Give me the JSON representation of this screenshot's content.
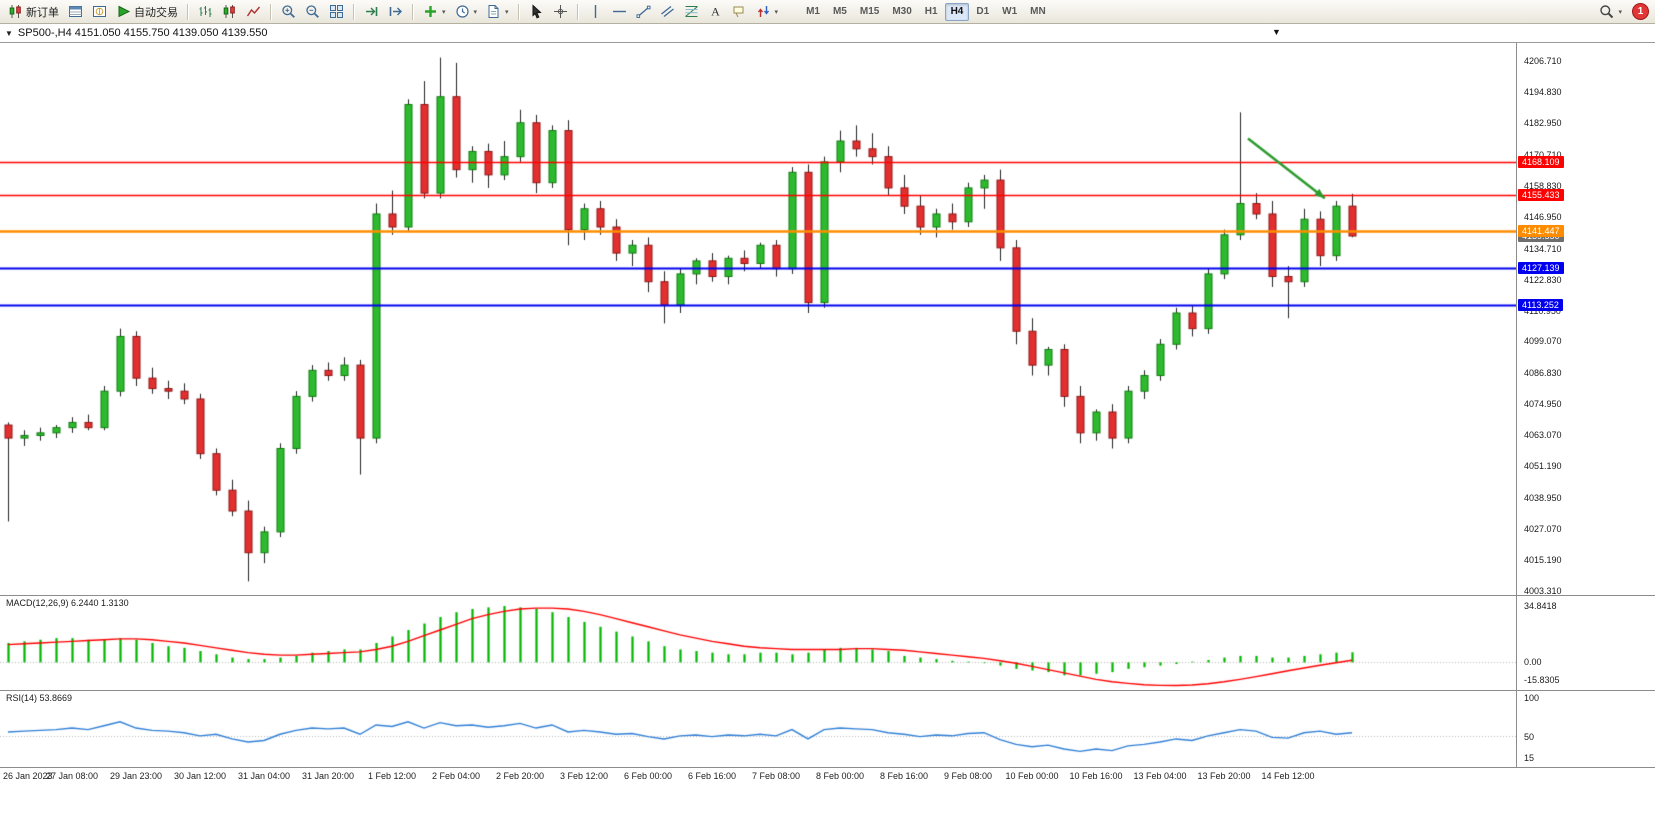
{
  "toolbar": {
    "items": [
      {
        "name": "new-order-button",
        "icon": "candles",
        "label": "新订单"
      },
      {
        "name": "market-watch-button",
        "icon": "watch"
      },
      {
        "name": "navigator-button",
        "icon": "navigator"
      },
      {
        "name": "auto-trading-button",
        "icon": "play",
        "label": "自动交易"
      },
      {
        "sep": true
      },
      {
        "name": "chart-bars-button",
        "icon": "bars"
      },
      {
        "name": "chart-candles-button",
        "icon": "candles"
      },
      {
        "name": "chart-line-button",
        "icon": "linechart"
      },
      {
        "sep": true
      },
      {
        "name": "zoom-in-button",
        "icon": "zoomin"
      },
      {
        "name": "zoom-out-button",
        "icon": "zoomout"
      },
      {
        "name": "tile-windows-button",
        "icon": "tile"
      },
      {
        "sep": true
      },
      {
        "name": "auto-scroll-button",
        "icon": "autoscroll"
      },
      {
        "name": "chart-shift-button",
        "icon": "shift"
      },
      {
        "sep": true
      },
      {
        "name": "indicators-button",
        "icon": "plus",
        "dropdown": true
      },
      {
        "name": "periods-button",
        "icon": "clock",
        "dropdown": true
      },
      {
        "name": "templates-button",
        "icon": "template",
        "dropdown": true
      },
      {
        "sep": true
      },
      {
        "name": "cursor-button",
        "icon": "cursor"
      },
      {
        "name": "crosshair-button",
        "icon": "crosshair"
      },
      {
        "sep": true
      },
      {
        "name": "vertical-line-button",
        "icon": "vline"
      },
      {
        "name": "horizontal-line-button",
        "icon": "hline"
      },
      {
        "name": "trendline-button",
        "icon": "trendline"
      },
      {
        "name": "channel-button",
        "icon": "channel"
      },
      {
        "name": "fibonacci-button",
        "icon": "fibo"
      },
      {
        "name": "text-button",
        "icon": "textA"
      },
      {
        "name": "label-button",
        "icon": "label"
      },
      {
        "name": "arrows-button",
        "icon": "arrows",
        "dropdown": true
      }
    ],
    "timeframes": [
      "M1",
      "M5",
      "M15",
      "M30",
      "H1",
      "H4",
      "D1",
      "W1",
      "MN"
    ],
    "active_timeframe": "H4",
    "notification_count": "1"
  },
  "chart": {
    "title": "SP500-,H4 4151.050 4155.750 4139.050 4139.550",
    "symbol": "SP500-",
    "timeframe": "H4",
    "open": "4151.050",
    "high": "4155.750",
    "low": "4139.050",
    "close": "4139.550"
  },
  "chart_data": {
    "type": "candlestick",
    "symbol": "SP500-",
    "period": "H4",
    "price_ticks": [
      "4206.710",
      "4194.830",
      "4182.950",
      "4170.710",
      "4158.830",
      "4146.950",
      "4134.710",
      "4122.830",
      "4110.950",
      "4099.070",
      "4086.830",
      "4074.950",
      "4063.070",
      "4051.190",
      "4038.950",
      "4027.070",
      "4015.190",
      "4003.310"
    ],
    "time_labels": [
      "26 Jan 2023",
      "27 Jan 08:00",
      "29 Jan 23:00",
      "30 Jan 12:00",
      "31 Jan 04:00",
      "31 Jan 20:00",
      "1 Feb 12:00",
      "2 Feb 04:00",
      "2 Feb 20:00",
      "3 Feb 12:00",
      "6 Feb 00:00",
      "6 Feb 16:00",
      "7 Feb 08:00",
      "8 Feb 00:00",
      "8 Feb 16:00",
      "9 Feb 08:00",
      "10 Feb 00:00",
      "10 Feb 16:00",
      "13 Feb 04:00",
      "13 Feb 20:00",
      "14 Feb 12:00"
    ],
    "candles": [
      [
        4067,
        4068,
        4030,
        4062
      ],
      [
        4062,
        4065,
        4059,
        4063
      ],
      [
        4063,
        4066,
        4061,
        4064
      ],
      [
        4064,
        4067,
        4062,
        4066
      ],
      [
        4066,
        4070,
        4064,
        4068
      ],
      [
        4068,
        4071,
        4065,
        4066
      ],
      [
        4066,
        4082,
        4065,
        4080
      ],
      [
        4080,
        4104,
        4078,
        4101
      ],
      [
        4101,
        4103,
        4082,
        4085
      ],
      [
        4085,
        4089,
        4079,
        4081
      ],
      [
        4081,
        4084,
        4077,
        4080
      ],
      [
        4080,
        4083,
        4075,
        4077
      ],
      [
        4077,
        4079,
        4054,
        4056
      ],
      [
        4056,
        4058,
        4040,
        4042
      ],
      [
        4042,
        4046,
        4032,
        4034
      ],
      [
        4034,
        4038,
        4007,
        4018
      ],
      [
        4018,
        4028,
        4014,
        4026
      ],
      [
        4026,
        4060,
        4024,
        4058
      ],
      [
        4058,
        4080,
        4056,
        4078
      ],
      [
        4078,
        4090,
        4076,
        4088
      ],
      [
        4088,
        4091,
        4084,
        4086
      ],
      [
        4086,
        4093,
        4084,
        4090
      ],
      [
        4090,
        4092,
        4048,
        4062
      ],
      [
        4062,
        4152,
        4060,
        4148
      ],
      [
        4148,
        4157,
        4140,
        4143
      ],
      [
        4143,
        4192,
        4141,
        4190
      ],
      [
        4190,
        4199,
        4154,
        4156
      ],
      [
        4156,
        4208,
        4154,
        4193
      ],
      [
        4193,
        4206,
        4162,
        4165
      ],
      [
        4165,
        4174,
        4160,
        4172
      ],
      [
        4172,
        4175,
        4158,
        4163
      ],
      [
        4163,
        4176,
        4161,
        4170
      ],
      [
        4170,
        4188,
        4168,
        4183
      ],
      [
        4183,
        4186,
        4156,
        4160
      ],
      [
        4160,
        4182,
        4158,
        4180
      ],
      [
        4180,
        4184,
        4136,
        4142
      ],
      [
        4142,
        4152,
        4138,
        4150
      ],
      [
        4150,
        4153,
        4140,
        4143
      ],
      [
        4143,
        4146,
        4130,
        4133
      ],
      [
        4133,
        4138,
        4128,
        4136
      ],
      [
        4136,
        4139,
        4118,
        4122
      ],
      [
        4122,
        4126,
        4106,
        4113
      ],
      [
        4113,
        4127,
        4110,
        4125
      ],
      [
        4125,
        4131,
        4121,
        4130
      ],
      [
        4130,
        4133,
        4122,
        4124
      ],
      [
        4124,
        4132,
        4121,
        4131
      ],
      [
        4131,
        4134,
        4126,
        4129
      ],
      [
        4129,
        4137,
        4127,
        4136
      ],
      [
        4136,
        4138,
        4124,
        4127
      ],
      [
        4127,
        4166,
        4125,
        4164
      ],
      [
        4164,
        4167,
        4110,
        4114
      ],
      [
        4114,
        4170,
        4112,
        4168
      ],
      [
        4168,
        4180,
        4164,
        4176
      ],
      [
        4176,
        4182,
        4170,
        4173
      ],
      [
        4173,
        4179,
        4167,
        4170
      ],
      [
        4170,
        4174,
        4155,
        4158
      ],
      [
        4158,
        4163,
        4148,
        4151
      ],
      [
        4151,
        4155,
        4140,
        4143
      ],
      [
        4143,
        4150,
        4139,
        4148
      ],
      [
        4148,
        4152,
        4142,
        4145
      ],
      [
        4145,
        4160,
        4143,
        4158
      ],
      [
        4158,
        4163,
        4150,
        4161
      ],
      [
        4161,
        4165,
        4130,
        4135
      ],
      [
        4135,
        4138,
        4098,
        4103
      ],
      [
        4103,
        4108,
        4086,
        4090
      ],
      [
        4090,
        4097,
        4086,
        4096
      ],
      [
        4096,
        4098,
        4074,
        4078
      ],
      [
        4078,
        4082,
        4060,
        4064
      ],
      [
        4064,
        4073,
        4061,
        4072
      ],
      [
        4072,
        4075,
        4058,
        4062
      ],
      [
        4062,
        4082,
        4060,
        4080
      ],
      [
        4080,
        4088,
        4077,
        4086
      ],
      [
        4086,
        4100,
        4084,
        4098
      ],
      [
        4098,
        4112,
        4096,
        4110
      ],
      [
        4110,
        4113,
        4101,
        4104
      ],
      [
        4104,
        4127,
        4102,
        4125
      ],
      [
        4125,
        4142,
        4123,
        4140
      ],
      [
        4140,
        4187,
        4138,
        4152
      ],
      [
        4152,
        4156,
        4146,
        4148
      ],
      [
        4148,
        4153,
        4120,
        4124
      ],
      [
        4124,
        4128,
        4108,
        4122
      ],
      [
        4122,
        4150,
        4120,
        4146
      ],
      [
        4146,
        4149,
        4128,
        4132
      ],
      [
        4132,
        4153,
        4130,
        4151
      ],
      [
        4151,
        4155.75,
        4139.05,
        4139.55
      ]
    ],
    "levels": [
      {
        "price": 4168.109,
        "label": "4168.109",
        "color": "#ff0000",
        "width": 1.5
      },
      {
        "price": 4155.433,
        "label": "4155.433",
        "color": "#ff0000",
        "width": 1.5
      },
      {
        "price": 4141.447,
        "label": "4141.447",
        "color": "#ff8c00",
        "width": 2.5
      },
      {
        "price": 4127.139,
        "label": "4127.139",
        "color": "#0000ee",
        "width": 2
      },
      {
        "price": 4113.252,
        "label": "4113.252",
        "color": "#0000ee",
        "width": 2
      }
    ],
    "current_price": {
      "price": 4139.55,
      "label": "4139.550",
      "color": "#6e6e6e"
    },
    "annotation_arrow": {
      "from": [
        77.5,
        4177
      ],
      "to": [
        82.3,
        4154
      ],
      "color": "#2e9b2e"
    },
    "macd": {
      "display": "MACD(12,26,9) 6.2440 1.3130",
      "axis": [
        "34.8418",
        "0.00",
        "-15.8305"
      ],
      "hist": [
        12,
        13,
        14,
        15,
        15,
        14,
        14,
        15,
        14,
        12,
        10,
        9,
        7,
        5,
        3,
        2,
        2,
        3,
        4,
        6,
        7,
        8,
        8,
        12,
        16,
        20,
        24,
        28,
        31,
        33,
        34,
        34.8,
        34,
        33,
        31,
        28,
        25,
        22,
        19,
        16,
        13,
        10,
        8,
        7,
        6,
        5,
        5,
        6,
        6,
        5,
        6,
        8,
        9,
        9,
        8,
        7,
        4,
        3,
        2,
        1,
        0.5,
        -0.5,
        -2,
        -4,
        -5,
        -6,
        -8,
        -8,
        -7,
        -6,
        -4,
        -3,
        -2,
        -1,
        0.5,
        1.5,
        3,
        4,
        4,
        3,
        3,
        4,
        5,
        6,
        6.244
      ],
      "signal": [
        11,
        11.5,
        12,
        12.5,
        13,
        13.5,
        14,
        14.5,
        14.5,
        14,
        13,
        12,
        10.5,
        9,
        7.5,
        6,
        5,
        4.5,
        4.5,
        5,
        5.5,
        6,
        6.5,
        8,
        10,
        13,
        16.5,
        20,
        23.5,
        27,
        29.5,
        31.5,
        33,
        33.5,
        33.5,
        33,
        31.5,
        29.5,
        27,
        24.5,
        22,
        19.5,
        17,
        15,
        13,
        11.5,
        10,
        9,
        8.5,
        8,
        8,
        8,
        8,
        8.5,
        8.5,
        8,
        7.5,
        6.5,
        5.5,
        4.5,
        3.5,
        2.5,
        1,
        -0.5,
        -2.5,
        -4.5,
        -6.5,
        -8.5,
        -10.5,
        -12,
        -13,
        -13.8,
        -14.2,
        -14.3,
        -14,
        -13.2,
        -12,
        -10.5,
        -8.8,
        -7,
        -5.2,
        -3.5,
        -1.8,
        -0.2,
        1.313
      ]
    },
    "rsi": {
      "display": "RSI(14) 53.8669",
      "axis": [
        "100",
        "50",
        "15"
      ],
      "values": [
        55,
        56,
        57,
        58,
        60,
        58,
        63,
        68,
        60,
        57,
        56,
        54,
        50,
        52,
        46,
        42,
        44,
        52,
        57,
        60,
        59,
        60,
        52,
        64,
        62,
        68,
        60,
        67,
        63,
        64,
        61,
        63,
        66,
        60,
        64,
        55,
        57,
        55,
        52,
        53,
        49,
        46,
        50,
        51,
        49,
        51,
        50,
        52,
        50,
        58,
        46,
        58,
        60,
        59,
        58,
        54,
        52,
        49,
        51,
        50,
        53,
        54,
        45,
        39,
        36,
        38,
        33,
        30,
        33,
        31,
        37,
        39,
        42,
        46,
        44,
        50,
        54,
        58,
        56,
        48,
        47,
        54,
        56,
        52,
        53.87
      ]
    },
    "colors": {
      "up": "#2dbb2d",
      "down": "#e23030",
      "up_border": "#107a10",
      "down_border": "#8f1414",
      "wick": "#222222",
      "macd_hist": "#00b300",
      "macd_signal": "#ff0000",
      "rsi_line": "#2f7fd6"
    }
  }
}
